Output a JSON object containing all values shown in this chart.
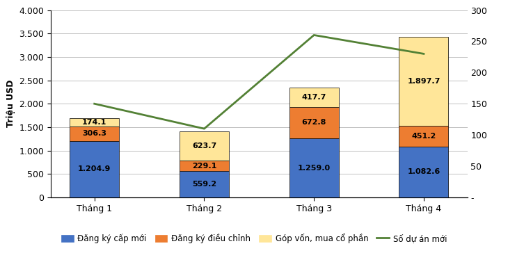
{
  "categories": [
    "Tháng 1",
    "Tháng 2",
    "Tháng 3",
    "Tháng 4"
  ],
  "dang_ky_cap_moi": [
    1204.9,
    559.2,
    1259.0,
    1082.6
  ],
  "dang_ky_dieu_chinh": [
    306.3,
    229.1,
    672.8,
    451.2
  ],
  "gop_von_mua_co_phan": [
    174.1,
    623.7,
    417.7,
    1897.7
  ],
  "so_du_an_moi": [
    150,
    110,
    260,
    230
  ],
  "bar_color_1": "#4472C4",
  "bar_color_2": "#ED7D31",
  "bar_color_3": "#FFE699",
  "line_color": "#538135",
  "ylabel_left": "Triệu USD",
  "ylim_left": [
    0,
    4000
  ],
  "ylim_right": [
    0,
    300
  ],
  "yticks_left": [
    0,
    500,
    1000,
    1500,
    2000,
    2500,
    3000,
    3500,
    4000
  ],
  "yticks_right": [
    0,
    50,
    100,
    150,
    200,
    250,
    300
  ],
  "ytick_labels_right": [
    "-",
    "50",
    "100",
    "150",
    "200",
    "250",
    "300"
  ],
  "legend_labels": [
    "Đăng ký cấp mới",
    "Đăng ký điều chỉnh",
    "Góp vốn, mua cổ phần",
    "Số dự án mới"
  ],
  "background_color": "#FFFFFF",
  "grid_color": "#C0C0C0",
  "bar_edge_color": "#000000",
  "bar_width": 0.45,
  "label_fontsize": 8,
  "tick_fontsize": 9,
  "legend_fontsize": 8.5,
  "ylabel_fontsize": 9
}
